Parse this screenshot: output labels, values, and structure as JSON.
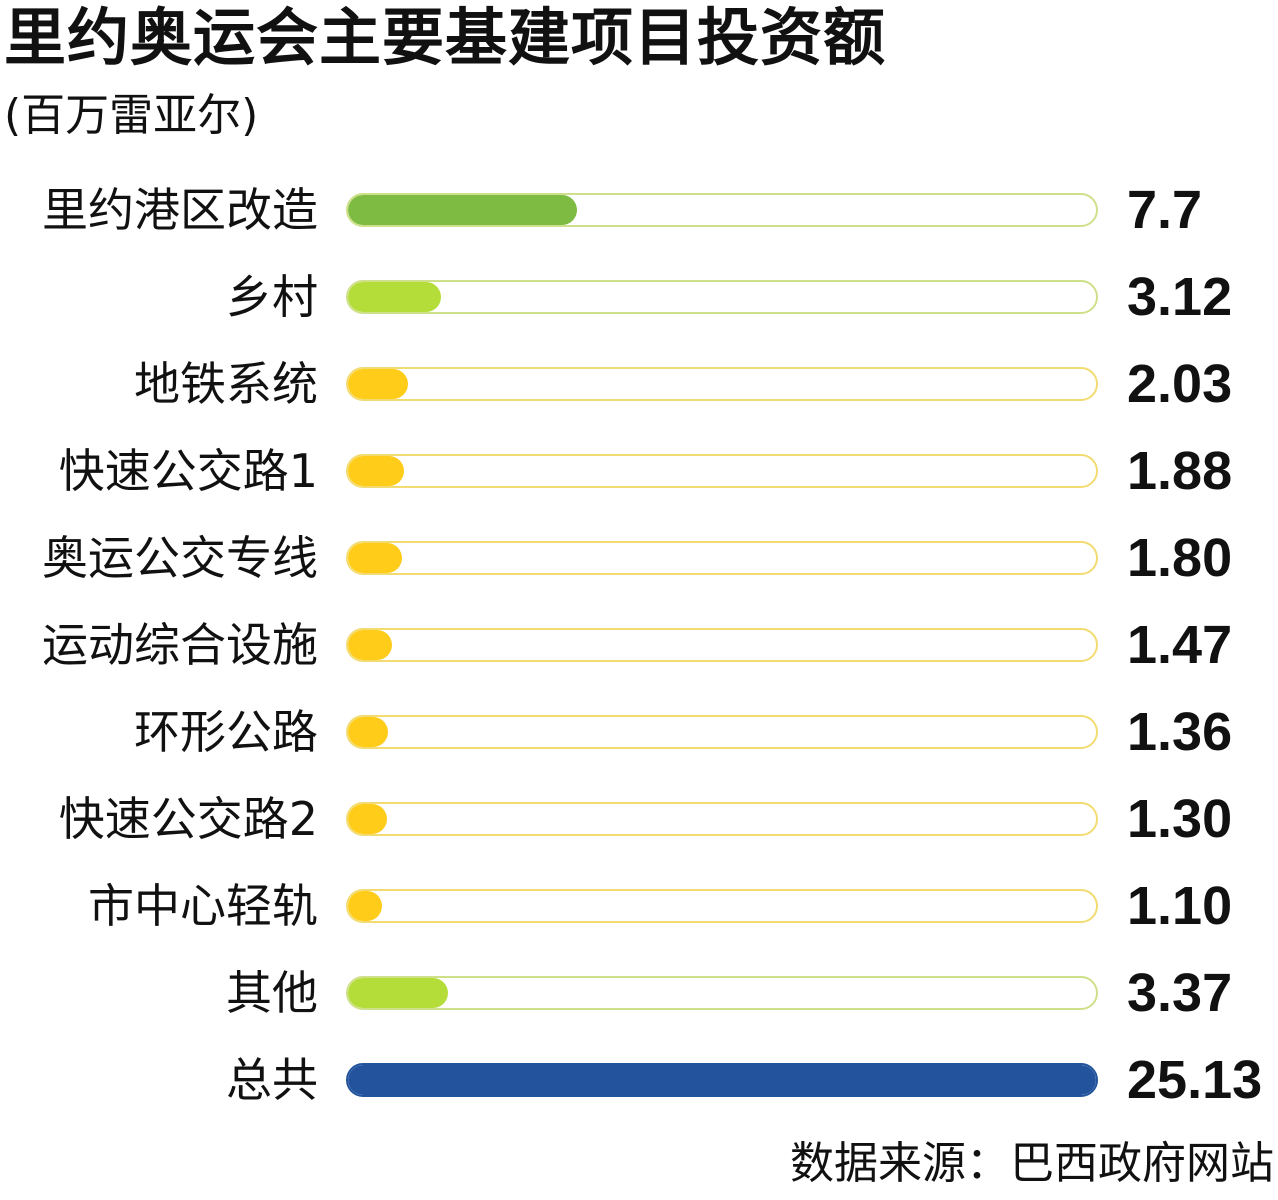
{
  "chart_data": {
    "type": "bar",
    "orientation": "horizontal",
    "title": "里约奥运会主要基建项目投资额",
    "subtitle": "(百万雷亚尔)",
    "source": "数据来源：巴西政府网站",
    "scale_max": 25.13,
    "categories": [
      "里约港区改造",
      "乡村",
      "地铁系统",
      "快速公交路1",
      "奥运公交专线",
      "运动综合设施",
      "环形公路",
      "快速公交路2",
      "市中心轻轨",
      "其他",
      "总共"
    ],
    "values": [
      7.7,
      3.12,
      2.03,
      1.88,
      1.8,
      1.47,
      1.36,
      1.3,
      1.1,
      3.37,
      25.13
    ],
    "value_labels": [
      "7.7",
      "3.12",
      "2.03",
      "1.88",
      "1.80",
      "1.47",
      "1.36",
      "1.30",
      "1.10",
      "3.37",
      "25.13"
    ],
    "colors": [
      "#7dbb42",
      "#b5dd3a",
      "#ffcc1a",
      "#ffcc1a",
      "#ffcc1a",
      "#ffcc1a",
      "#ffcc1a",
      "#ffcc1a",
      "#ffcc1a",
      "#b5dd3a",
      "#22539c"
    ],
    "track_borders": [
      "#cfe08a",
      "#cfe08a",
      "#f2dc72",
      "#f2dc72",
      "#f2dc72",
      "#f2dc72",
      "#f2dc72",
      "#f2dc72",
      "#f2dc72",
      "#cfe08a",
      "#22539c"
    ]
  }
}
